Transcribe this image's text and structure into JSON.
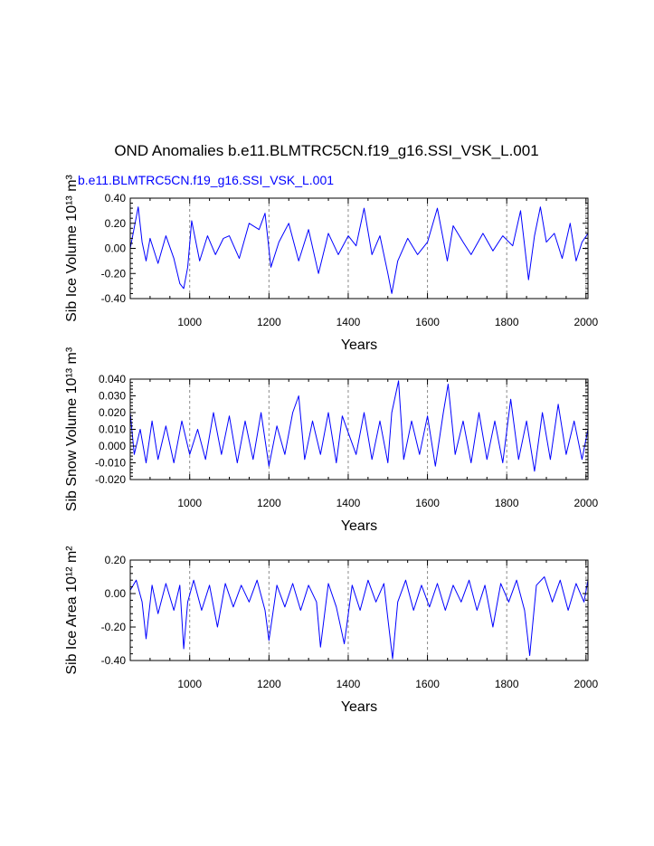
{
  "figure_title": "OND Anomalies b.e11.BLMTRC5CN.f19_g16.SSI_VSK_L.001",
  "colors": {
    "series": "#0000ff",
    "grid": "#8a8a8a",
    "axes": "#000000"
  },
  "chart_data": [
    {
      "type": "line",
      "title": "",
      "subtitle": "b.e11.BLMTRC5CN.f19_g16.SSI_VSK_L.001",
      "xlabel": "Years",
      "ylabel": "Sib Ice Volume 10¹³ m³",
      "xlim": [
        850,
        2005
      ],
      "ylim": [
        -0.4,
        0.4
      ],
      "x_ticks": [
        1000,
        1200,
        1400,
        1600,
        1800,
        2000
      ],
      "y_ticks": [
        -0.4,
        -0.2,
        0.0,
        0.2,
        0.4
      ],
      "y_tick_labels": [
        "-0.40",
        "-0.20",
        "0.00",
        "0.20",
        "0.40"
      ],
      "grid": "x dashed",
      "series": [
        {
          "x": [
            850,
            870,
            880,
            890,
            900,
            920,
            940,
            960,
            975,
            985,
            995,
            1005,
            1025,
            1045,
            1065,
            1085,
            1100,
            1125,
            1150,
            1175,
            1190,
            1205,
            1225,
            1250,
            1275,
            1300,
            1325,
            1350,
            1375,
            1400,
            1420,
            1440,
            1460,
            1480,
            1500,
            1510,
            1525,
            1550,
            1575,
            1600,
            1625,
            1650,
            1665,
            1690,
            1710,
            1740,
            1765,
            1790,
            1815,
            1835,
            1855,
            1870,
            1885,
            1900,
            1920,
            1940,
            1960,
            1975,
            1990,
            2005
          ],
          "y": [
            0.0,
            0.33,
            0.05,
            -0.1,
            0.08,
            -0.12,
            0.1,
            -0.08,
            -0.28,
            -0.32,
            -0.15,
            0.22,
            -0.1,
            0.1,
            -0.05,
            0.08,
            0.1,
            -0.08,
            0.2,
            0.15,
            0.28,
            -0.15,
            0.05,
            0.2,
            -0.1,
            0.15,
            -0.2,
            0.12,
            -0.05,
            0.1,
            0.02,
            0.32,
            -0.05,
            0.1,
            -0.2,
            -0.36,
            -0.1,
            0.08,
            -0.05,
            0.05,
            0.32,
            -0.1,
            0.18,
            0.05,
            -0.05,
            0.12,
            -0.02,
            0.1,
            0.02,
            0.3,
            -0.25,
            0.1,
            0.33,
            0.05,
            0.12,
            -0.08,
            0.2,
            -0.1,
            0.05,
            0.12
          ]
        }
      ]
    },
    {
      "type": "line",
      "title": "",
      "xlabel": "Years",
      "ylabel": "Sib Snow Volume 10¹³ m³",
      "xlim": [
        850,
        2005
      ],
      "ylim": [
        -0.02,
        0.04
      ],
      "x_ticks": [
        1000,
        1200,
        1400,
        1600,
        1800,
        2000
      ],
      "y_ticks": [
        -0.02,
        -0.01,
        0.0,
        0.01,
        0.02,
        0.03,
        0.04
      ],
      "y_tick_labels": [
        "-0.020",
        "-0.010",
        "0.000",
        "0.010",
        "0.020",
        "0.030",
        "0.040"
      ],
      "grid": "x dashed",
      "series": [
        {
          "x": [
            850,
            860,
            875,
            890,
            905,
            920,
            940,
            960,
            980,
            1000,
            1020,
            1040,
            1060,
            1080,
            1100,
            1120,
            1140,
            1160,
            1180,
            1200,
            1220,
            1240,
            1260,
            1275,
            1290,
            1310,
            1330,
            1350,
            1370,
            1385,
            1400,
            1420,
            1440,
            1460,
            1480,
            1500,
            1510,
            1527,
            1540,
            1560,
            1580,
            1600,
            1620,
            1640,
            1652,
            1670,
            1690,
            1710,
            1730,
            1750,
            1770,
            1790,
            1810,
            1830,
            1850,
            1870,
            1890,
            1910,
            1930,
            1950,
            1970,
            1990,
            2005
          ],
          "y": [
            0.02,
            -0.005,
            0.01,
            -0.01,
            0.015,
            -0.008,
            0.012,
            -0.01,
            0.015,
            -0.005,
            0.01,
            -0.008,
            0.02,
            -0.005,
            0.018,
            -0.01,
            0.015,
            -0.008,
            0.02,
            -0.012,
            0.012,
            -0.005,
            0.02,
            0.03,
            -0.008,
            0.015,
            -0.005,
            0.02,
            -0.01,
            0.018,
            0.008,
            -0.005,
            0.02,
            -0.008,
            0.015,
            -0.01,
            0.02,
            0.039,
            -0.008,
            0.015,
            -0.005,
            0.018,
            -0.012,
            0.02,
            0.037,
            -0.005,
            0.015,
            -0.01,
            0.02,
            -0.008,
            0.015,
            -0.01,
            0.028,
            -0.008,
            0.015,
            -0.015,
            0.02,
            -0.008,
            0.025,
            -0.005,
            0.015,
            -0.008,
            0.01
          ]
        }
      ]
    },
    {
      "type": "line",
      "title": "",
      "xlabel": "Years",
      "ylabel": "Sib Ice Area 10¹² m²",
      "xlim": [
        850,
        2005
      ],
      "ylim": [
        -0.4,
        0.2
      ],
      "x_ticks": [
        1000,
        1200,
        1400,
        1600,
        1800,
        2000
      ],
      "y_ticks": [
        -0.4,
        -0.2,
        0.0,
        0.2
      ],
      "y_tick_labels": [
        "-0.40",
        "-0.20",
        "0.00",
        "0.20"
      ],
      "grid": "x dashed",
      "series": [
        {
          "x": [
            850,
            865,
            880,
            890,
            905,
            920,
            940,
            960,
            975,
            985,
            995,
            1010,
            1030,
            1050,
            1070,
            1090,
            1110,
            1130,
            1150,
            1170,
            1190,
            1200,
            1220,
            1240,
            1260,
            1280,
            1300,
            1320,
            1330,
            1350,
            1370,
            1390,
            1410,
            1430,
            1450,
            1470,
            1490,
            1500,
            1512,
            1525,
            1545,
            1565,
            1585,
            1605,
            1625,
            1645,
            1665,
            1685,
            1705,
            1725,
            1745,
            1765,
            1785,
            1805,
            1825,
            1845,
            1858,
            1875,
            1895,
            1915,
            1935,
            1955,
            1975,
            1995,
            2005
          ],
          "y": [
            0.02,
            0.08,
            -0.05,
            -0.27,
            0.05,
            -0.12,
            0.06,
            -0.1,
            0.05,
            -0.33,
            -0.05,
            0.08,
            -0.1,
            0.05,
            -0.2,
            0.06,
            -0.08,
            0.05,
            -0.05,
            0.08,
            -0.1,
            -0.28,
            0.05,
            -0.08,
            0.06,
            -0.1,
            0.05,
            -0.05,
            -0.32,
            0.06,
            -0.08,
            -0.3,
            0.05,
            -0.1,
            0.08,
            -0.05,
            0.06,
            -0.15,
            -0.39,
            -0.05,
            0.08,
            -0.1,
            0.05,
            -0.08,
            0.06,
            -0.1,
            0.05,
            -0.05,
            0.08,
            -0.1,
            0.05,
            -0.2,
            0.06,
            -0.05,
            0.08,
            -0.1,
            -0.37,
            0.05,
            0.1,
            -0.05,
            0.08,
            -0.1,
            0.06,
            -0.05,
            0.08
          ]
        }
      ]
    }
  ]
}
